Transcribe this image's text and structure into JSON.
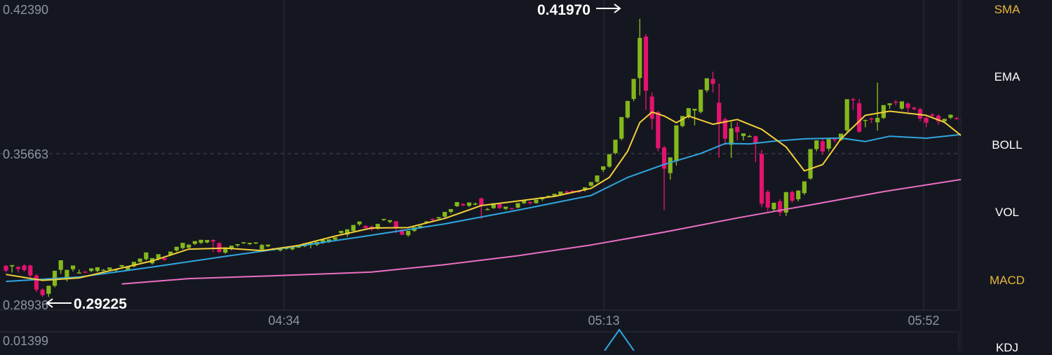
{
  "chart_data": [
    {
      "type": "candlestick",
      "price_axis": {
        "ticks": [
          "0.42390",
          "0.35663",
          "0.28936"
        ],
        "ylim": [
          0.28936,
          0.4239
        ]
      },
      "time_axis": {
        "ticks": [
          "04:34",
          "05:13",
          "05:52"
        ]
      },
      "current_price_reference": 0.35663,
      "highest_marker": {
        "label": "0.41970",
        "value": 0.4197
      },
      "lowest_marker": {
        "label": "0.29225",
        "value": 0.29225
      },
      "colors": {
        "up": "#84b81c",
        "down": "#e2136e",
        "ma_fast": "#f2cf3a",
        "ma_mid": "#2fa6e0",
        "ma_slow": "#ec6fc4",
        "background": "#151720",
        "grid": "#2a2d38"
      },
      "candles": [
        [
          0.3065,
          0.3068,
          0.3042,
          0.3034
        ],
        [
          0.3062,
          0.3063,
          0.3068,
          0.3034
        ],
        [
          0.3059,
          0.3063,
          0.305,
          0.3034
        ],
        [
          0.3066,
          0.3072,
          0.3045,
          0.3038
        ],
        [
          0.3066,
          0.307,
          0.302,
          0.3012
        ],
        [
          0.302,
          0.3027,
          0.2955,
          0.2944
        ],
        [
          0.2955,
          0.2961,
          0.293,
          0.2922
        ],
        [
          0.2936,
          0.2963,
          0.2973,
          0.2922
        ],
        [
          0.2973,
          0.3012,
          0.3042,
          0.2966
        ],
        [
          0.3046,
          0.308,
          0.309,
          0.3028
        ],
        [
          0.3005,
          0.3034,
          0.3046,
          0.2993
        ],
        [
          0.3049,
          0.3051,
          0.3066,
          0.3039
        ],
        [
          0.3032,
          0.3048,
          0.3034,
          0.303
        ],
        [
          0.3038,
          0.304,
          0.3035,
          0.3031
        ],
        [
          0.3041,
          0.3043,
          0.3053,
          0.3035
        ],
        [
          0.3041,
          0.305,
          0.3058,
          0.3035
        ],
        [
          0.3045,
          0.305,
          0.3046,
          0.304
        ],
        [
          0.3047,
          0.3052,
          0.3057,
          0.3041
        ],
        [
          0.3044,
          0.3048,
          0.3048,
          0.3039
        ],
        [
          0.3061,
          0.3064,
          0.3068,
          0.3056
        ],
        [
          0.3045,
          0.305,
          0.3061,
          0.304
        ],
        [
          0.3062,
          0.3074,
          0.3083,
          0.3058
        ],
        [
          0.3082,
          0.309,
          0.3098,
          0.308
        ],
        [
          0.3095,
          0.311,
          0.3126,
          0.3089
        ],
        [
          0.3076,
          0.308,
          0.31,
          0.307
        ],
        [
          0.3098,
          0.3108,
          0.3118,
          0.309
        ],
        [
          0.31,
          0.3101,
          0.3092,
          0.3088
        ],
        [
          0.3116,
          0.312,
          0.313,
          0.311
        ],
        [
          0.3135,
          0.3142,
          0.3152,
          0.313
        ],
        [
          0.3146,
          0.3156,
          0.317,
          0.314
        ],
        [
          0.3148,
          0.3152,
          0.3162,
          0.3144
        ],
        [
          0.3165,
          0.3168,
          0.3178,
          0.316
        ],
        [
          0.317,
          0.3175,
          0.3184,
          0.3165
        ],
        [
          0.3172,
          0.3175,
          0.3183,
          0.3168
        ],
        [
          0.3183,
          0.3186,
          0.3176,
          0.3128
        ],
        [
          0.3169,
          0.3173,
          0.3128,
          0.3124
        ],
        [
          0.3125,
          0.313,
          0.3148,
          0.312
        ],
        [
          0.3141,
          0.3148,
          0.3157,
          0.3136
        ],
        [
          0.3158,
          0.316,
          0.3164,
          0.3152
        ],
        [
          0.3168,
          0.317,
          0.3173,
          0.3165
        ],
        [
          0.3164,
          0.3167,
          0.317,
          0.316
        ],
        [
          0.3168,
          0.317,
          0.3172,
          0.3164
        ],
        [
          0.3139,
          0.3165,
          0.316,
          0.3134
        ],
        [
          0.3154,
          0.316,
          0.3162,
          0.315
        ],
        [
          0.3139,
          0.3143,
          0.3145,
          0.3135
        ],
        [
          0.3135,
          0.3138,
          0.3142,
          0.313
        ],
        [
          0.3142,
          0.3146,
          0.315,
          0.3138
        ],
        [
          0.314,
          0.3145,
          0.3155,
          0.3136
        ],
        [
          0.3148,
          0.3152,
          0.3161,
          0.3146
        ],
        [
          0.3154,
          0.3158,
          0.3168,
          0.315
        ],
        [
          0.316,
          0.3175,
          0.317,
          0.3145
        ],
        [
          0.3161,
          0.3165,
          0.3174,
          0.3155
        ],
        [
          0.317,
          0.318,
          0.3184,
          0.3165
        ],
        [
          0.3175,
          0.318,
          0.3186,
          0.317
        ],
        [
          0.3185,
          0.319,
          0.3195,
          0.318
        ],
        [
          0.3215,
          0.322,
          0.3225,
          0.3205
        ],
        [
          0.3208,
          0.3216,
          0.3232,
          0.3198
        ],
        [
          0.3225,
          0.324,
          0.3252,
          0.322
        ],
        [
          0.3255,
          0.3262,
          0.3268,
          0.3248
        ],
        [
          0.3248,
          0.325,
          0.3238,
          0.323
        ],
        [
          0.3245,
          0.3248,
          0.3232,
          0.3225
        ],
        [
          0.3235,
          0.3238,
          0.3257,
          0.323
        ],
        [
          0.3275,
          0.328,
          0.328,
          0.327
        ],
        [
          0.3266,
          0.327,
          0.3274,
          0.326
        ],
        [
          0.3269,
          0.327,
          0.3239,
          0.3213
        ],
        [
          0.3231,
          0.3233,
          0.3207,
          0.3206
        ],
        [
          0.3205,
          0.3212,
          0.3225,
          0.3198
        ],
        [
          0.3225,
          0.323,
          0.3242,
          0.322
        ],
        [
          0.324,
          0.3245,
          0.3248,
          0.3235
        ],
        [
          0.3268,
          0.327,
          0.3268,
          0.3258
        ],
        [
          0.328,
          0.3282,
          0.3275,
          0.327
        ],
        [
          0.3282,
          0.3285,
          0.3288,
          0.3275
        ],
        [
          0.329,
          0.33,
          0.3312,
          0.3285
        ],
        [
          0.3312,
          0.3322,
          0.3325,
          0.3305
        ],
        [
          0.3338,
          0.3345,
          0.3357,
          0.3335
        ],
        [
          0.3348,
          0.3352,
          0.3342,
          0.3338
        ],
        [
          0.334,
          0.335,
          0.3355,
          0.3335
        ],
        [
          0.335,
          0.3355,
          0.335,
          0.3342
        ],
        [
          0.3374,
          0.3378,
          0.334,
          0.328
        ],
        [
          0.3325,
          0.333,
          0.3325,
          0.332
        ],
        [
          0.3329,
          0.334,
          0.3352,
          0.3326
        ],
        [
          0.3347,
          0.335,
          0.333,
          0.3325
        ],
        [
          0.3326,
          0.333,
          0.3336,
          0.332
        ],
        [
          0.3329,
          0.333,
          0.3325,
          0.3322
        ],
        [
          0.3332,
          0.3335,
          0.3352,
          0.3328
        ],
        [
          0.3352,
          0.3354,
          0.3365,
          0.3348
        ],
        [
          0.3358,
          0.336,
          0.3352,
          0.3345
        ],
        [
          0.3352,
          0.3356,
          0.3368,
          0.335
        ],
        [
          0.337,
          0.3373,
          0.338,
          0.3362
        ],
        [
          0.3385,
          0.3388,
          0.3385,
          0.338
        ],
        [
          0.3387,
          0.339,
          0.3395,
          0.3384
        ],
        [
          0.339,
          0.3395,
          0.3405,
          0.3385
        ],
        [
          0.3405,
          0.341,
          0.34,
          0.3395
        ],
        [
          0.3409,
          0.341,
          0.3403,
          0.3399
        ],
        [
          0.3407,
          0.341,
          0.3405,
          0.34
        ],
        [
          0.3415,
          0.3418,
          0.3425,
          0.3405
        ],
        [
          0.3432,
          0.3438,
          0.3449,
          0.3428
        ],
        [
          0.345,
          0.346,
          0.3479,
          0.3445
        ],
        [
          0.3505,
          0.351,
          0.3521,
          0.3495
        ],
        [
          0.352,
          0.353,
          0.3577,
          0.3515
        ],
        [
          0.3582,
          0.3592,
          0.3643,
          0.3575
        ],
        [
          0.3648,
          0.3658,
          0.3747,
          0.364
        ],
        [
          0.3745,
          0.376,
          0.3821,
          0.374
        ],
        [
          0.383,
          0.391,
          0.3922,
          0.382
        ],
        [
          0.3926,
          0.4197,
          0.411,
          0.3846
        ],
        [
          0.4116,
          0.4128,
          0.3868,
          0.378
        ],
        [
          0.3841,
          0.386,
          0.3739,
          0.369
        ],
        [
          0.377,
          0.3775,
          0.3604,
          0.359
        ],
        [
          0.3607,
          0.3615,
          0.351,
          0.332
        ],
        [
          0.349,
          0.35,
          0.3562,
          0.346
        ],
        [
          0.3544,
          0.355,
          0.3709,
          0.3525
        ],
        [
          0.3706,
          0.3712,
          0.3752,
          0.37
        ],
        [
          0.3753,
          0.376,
          0.3788,
          0.374
        ],
        [
          0.3777,
          0.3785,
          0.3785,
          0.3709
        ],
        [
          0.3771,
          0.3785,
          0.3873,
          0.3764
        ],
        [
          0.387,
          0.389,
          0.3925,
          0.386
        ],
        [
          0.3922,
          0.3955,
          0.3899,
          0.386
        ],
        [
          0.3813,
          0.3901,
          0.372,
          0.356
        ],
        [
          0.3737,
          0.3745,
          0.3648,
          0.3618
        ],
        [
          0.362,
          0.3725,
          0.3695,
          0.356
        ],
        [
          0.3702,
          0.3725,
          0.3678,
          0.364
        ],
        [
          0.366,
          0.3672,
          0.3672,
          0.364
        ],
        [
          0.366,
          0.3665,
          0.366,
          0.3655
        ],
        [
          0.3659,
          0.3662,
          0.3628,
          0.354
        ],
        [
          0.3578,
          0.3596,
          0.3349,
          0.3333
        ],
        [
          0.3404,
          0.3412,
          0.3332,
          0.3315
        ],
        [
          0.3324,
          0.3335,
          0.3354,
          0.3315
        ],
        [
          0.3361,
          0.337,
          0.3309,
          0.3293
        ],
        [
          0.3309,
          0.3378,
          0.3403,
          0.3293
        ],
        [
          0.3403,
          0.341,
          0.3363,
          0.3355
        ],
        [
          0.337,
          0.3378,
          0.341,
          0.336
        ],
        [
          0.3398,
          0.3402,
          0.3452,
          0.339
        ],
        [
          0.3465,
          0.3472,
          0.36,
          0.346
        ],
        [
          0.36,
          0.3632,
          0.364,
          0.359
        ],
        [
          0.3636,
          0.3651,
          0.3589,
          0.3575
        ],
        [
          0.3602,
          0.3615,
          0.3646,
          0.359
        ],
        [
          0.3645,
          0.3652,
          0.3641,
          0.363
        ],
        [
          0.3642,
          0.365,
          0.3671,
          0.3638
        ],
        [
          0.3686,
          0.3692,
          0.3829,
          0.368
        ],
        [
          0.3829,
          0.3835,
          0.3825,
          0.378
        ],
        [
          0.381,
          0.383,
          0.368,
          0.3675
        ],
        [
          0.373,
          0.3735,
          0.3734,
          0.37
        ],
        [
          0.3741,
          0.3745,
          0.3736,
          0.372
        ],
        [
          0.3723,
          0.3905,
          0.3743,
          0.3685
        ],
        [
          0.3743,
          0.3765,
          0.3802,
          0.3738
        ],
        [
          0.3802,
          0.381,
          0.381,
          0.3785
        ],
        [
          0.3817,
          0.3825,
          0.3813,
          0.38
        ],
        [
          0.3786,
          0.3805,
          0.3819,
          0.378
        ],
        [
          0.3809,
          0.3815,
          0.3789,
          0.377
        ],
        [
          0.379,
          0.3795,
          0.3783,
          0.3778
        ],
        [
          0.3783,
          0.379,
          0.374,
          0.3728
        ],
        [
          0.3743,
          0.375,
          0.3721,
          0.37
        ],
        [
          0.3759,
          0.3765,
          0.3753,
          0.3745
        ],
        [
          0.3753,
          0.376,
          0.3728,
          0.3712
        ],
        [
          0.3728,
          0.3735,
          0.3739,
          0.372
        ],
        [
          0.3744,
          0.375,
          0.3758,
          0.3738
        ],
        [
          0.3742,
          0.3748,
          0.3738,
          0.3735
        ],
        [
          0.374,
          0.3745,
          0.3726,
          0.372
        ],
        [
          0.3732,
          0.374,
          0.3736,
          0.3725
        ],
        [
          0.3749,
          0.3755,
          0.3738,
          0.37
        ],
        [
          0.3706,
          0.371,
          0.3604,
          0.353
        ],
        [
          0.3559,
          0.3565,
          0.3547,
          0.354
        ],
        [
          0.3548,
          0.3556,
          0.3566,
          0.3542
        ]
      ],
      "ma_fast": [
        [
          0,
          0.3025
        ],
        [
          6,
          0.2998
        ],
        [
          12,
          0.3009
        ],
        [
          18,
          0.3048
        ],
        [
          24,
          0.3087
        ],
        [
          30,
          0.3141
        ],
        [
          36,
          0.3146
        ],
        [
          42,
          0.3134
        ],
        [
          48,
          0.3158
        ],
        [
          54,
          0.3201
        ],
        [
          60,
          0.3238
        ],
        [
          66,
          0.324
        ],
        [
          72,
          0.3282
        ],
        [
          78,
          0.3341
        ],
        [
          84,
          0.3362
        ],
        [
          90,
          0.3383
        ],
        [
          96,
          0.342
        ],
        [
          99,
          0.347
        ],
        [
          102,
          0.359
        ],
        [
          104,
          0.3722
        ],
        [
          106,
          0.377
        ],
        [
          108,
          0.3752
        ],
        [
          110,
          0.3721
        ],
        [
          112,
          0.3752
        ],
        [
          116,
          0.3714
        ],
        [
          120,
          0.3736
        ],
        [
          124,
          0.3691
        ],
        [
          128,
          0.361
        ],
        [
          131,
          0.35
        ],
        [
          134,
          0.3529
        ],
        [
          137,
          0.3647
        ],
        [
          141,
          0.3755
        ],
        [
          145,
          0.3774
        ],
        [
          151,
          0.3755
        ],
        [
          154,
          0.3723
        ],
        [
          157,
          0.3656
        ]
      ],
      "ma_mid": [
        [
          0,
          0.2993
        ],
        [
          12,
          0.3013
        ],
        [
          24,
          0.3059
        ],
        [
          36,
          0.3108
        ],
        [
          48,
          0.3155
        ],
        [
          60,
          0.3205
        ],
        [
          72,
          0.3257
        ],
        [
          84,
          0.332
        ],
        [
          96,
          0.3387
        ],
        [
          102,
          0.347
        ],
        [
          108,
          0.353
        ],
        [
          114,
          0.358
        ],
        [
          118,
          0.3626
        ],
        [
          122,
          0.3624
        ],
        [
          126,
          0.3636
        ],
        [
          131,
          0.3647
        ],
        [
          137,
          0.3651
        ],
        [
          141,
          0.3635
        ],
        [
          145,
          0.3659
        ],
        [
          151,
          0.365
        ],
        [
          157,
          0.3668
        ]
      ],
      "ma_slow": [
        [
          19,
          0.2981
        ],
        [
          30,
          0.3006
        ],
        [
          43,
          0.3018
        ],
        [
          60,
          0.3036
        ],
        [
          72,
          0.307
        ],
        [
          84,
          0.3111
        ],
        [
          96,
          0.316
        ],
        [
          108,
          0.3219
        ],
        [
          120,
          0.3284
        ],
        [
          132,
          0.3344
        ],
        [
          144,
          0.3405
        ],
        [
          157,
          0.3462
        ]
      ]
    },
    {
      "type": "line",
      "panel": "MACD",
      "y_axis": {
        "ticks": [
          "0.01399"
        ]
      }
    }
  ],
  "sidebar": {
    "items": [
      {
        "label": "SMA",
        "active": true
      },
      {
        "label": "EMA",
        "active": false
      },
      {
        "label": "BOLL",
        "active": false
      },
      {
        "label": "VOL",
        "active": false
      },
      {
        "label": "MACD",
        "active": true
      },
      {
        "label": "KDJ",
        "active": false
      }
    ]
  }
}
